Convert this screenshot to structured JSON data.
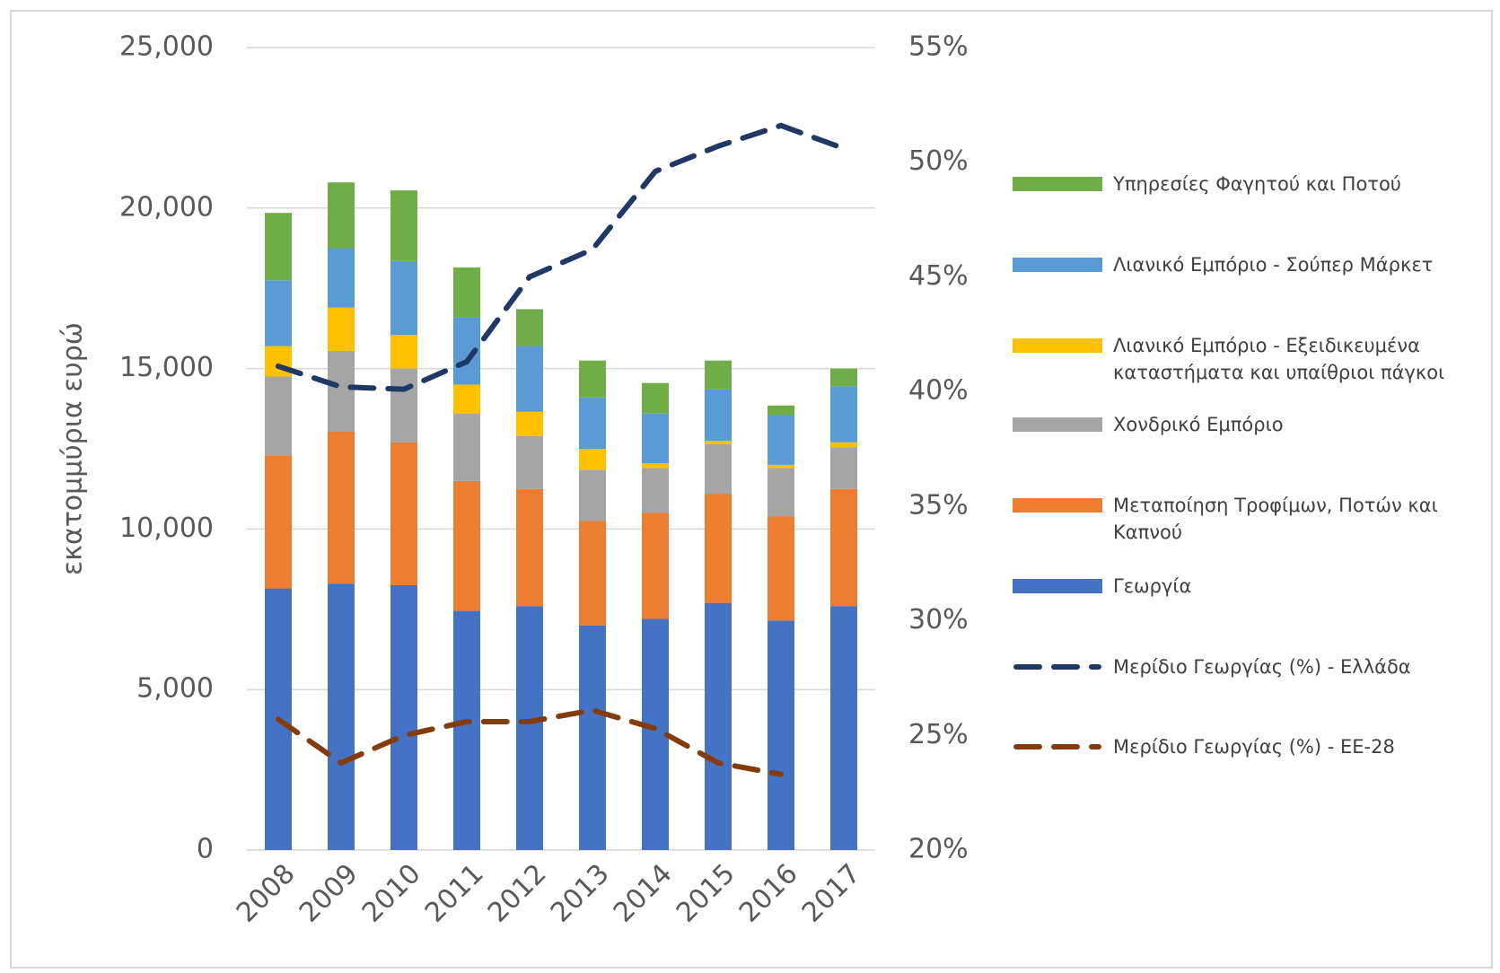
{
  "chart_data": {
    "type": "bar",
    "stacked": true,
    "y_label": "εκατομμύρια ευρώ",
    "categories": [
      "2008",
      "2009",
      "2010",
      "2011",
      "2012",
      "2013",
      "2014",
      "2015",
      "2016",
      "2017"
    ],
    "series": [
      {
        "name": "Γεωργία",
        "type": "bar",
        "color": "#4472c4",
        "values": [
          8150,
          8300,
          8250,
          7450,
          7600,
          7000,
          7200,
          7700,
          7150,
          7600
        ]
      },
      {
        "name": "Μεταποίηση Τροφίμων, Ποτών και Καπνού",
        "type": "bar",
        "color": "#ed7d31",
        "values": [
          4150,
          4750,
          4450,
          4050,
          3650,
          3250,
          3300,
          3400,
          3250,
          3650
        ]
      },
      {
        "name": "Χονδρικό Εμπόριο",
        "type": "bar",
        "color": "#a5a5a5",
        "values": [
          2450,
          2500,
          2300,
          2100,
          1650,
          1600,
          1400,
          1550,
          1500,
          1300
        ]
      },
      {
        "name": "Λιανικό Εμπόριο - Εξειδικευμένα καταστήματα και υπαίθριοι πάγκοι",
        "type": "bar",
        "color": "#ffc000",
        "values": [
          950,
          1350,
          1050,
          900,
          750,
          650,
          150,
          100,
          100,
          150
        ]
      },
      {
        "name": "Λιανικό Εμπόριο - Σούπερ Μάρκετ",
        "type": "bar",
        "color": "#5b9bd5",
        "values": [
          2050,
          1850,
          2300,
          2100,
          2050,
          1600,
          1550,
          1600,
          1550,
          1750
        ]
      },
      {
        "name": "Υπηρεσίες Φαγητού και Ποτού",
        "type": "bar",
        "color": "#70ad47",
        "values": [
          2100,
          2050,
          2200,
          1550,
          1150,
          1150,
          950,
          900,
          300,
          550
        ]
      },
      {
        "name": "Μερίδιο Γεωργίας (%) - Ελλάδα",
        "type": "line",
        "axis": "y2",
        "color": "#203864",
        "values": [
          41.1,
          40.2,
          40.1,
          41.3,
          45.0,
          46.2,
          49.6,
          50.7,
          51.6,
          50.6
        ]
      },
      {
        "name": "Μερίδιο Γεωργίας (%) - ΕΕ-28",
        "type": "line",
        "axis": "y2",
        "color": "#843c0c",
        "values": [
          25.7,
          23.8,
          25.0,
          25.6,
          25.6,
          26.1,
          25.3,
          23.8,
          23.3,
          null
        ]
      }
    ],
    "ylim": [
      0,
      25000
    ],
    "yticks": [
      0,
      {
        "value": 5000,
        "label": "5,000"
      },
      {
        "value": 10000,
        "label": "10,000"
      },
      {
        "value": 15000,
        "label": "15,000"
      },
      {
        "value": 20000,
        "label": "20,000"
      },
      {
        "value": 25000,
        "label": "25,000"
      }
    ],
    "y2lim": [
      20,
      55
    ],
    "y2ticks": [
      {
        "value": 20,
        "label": "20%"
      },
      {
        "value": 25,
        "label": "25%"
      },
      {
        "value": 30,
        "label": "30%"
      },
      {
        "value": 35,
        "label": "35%"
      },
      {
        "value": 40,
        "label": "40%"
      },
      {
        "value": 45,
        "label": "45%"
      },
      {
        "value": 50,
        "label": "50%"
      },
      {
        "value": 55,
        "label": "55%"
      }
    ],
    "grid": true,
    "legend": "right"
  }
}
